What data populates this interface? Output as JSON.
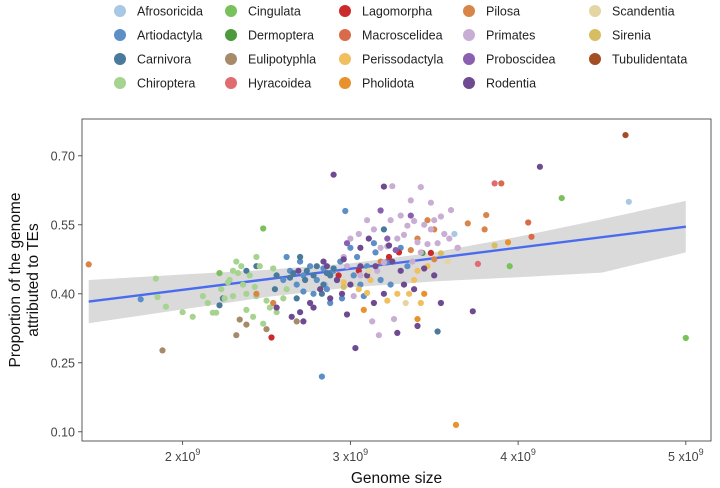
{
  "chart_data": {
    "type": "scatter",
    "title": "",
    "xlabel": "Genome size",
    "ylabel_lines": [
      "Proportion of the genome",
      "attributed to TEs"
    ],
    "xlim": [
      1400000000,
      5150000000
    ],
    "ylim": [
      0.08,
      0.78
    ],
    "x_ticks": [
      {
        "value": 2000000000,
        "mantissa": "2",
        "base": " x10",
        "exp": "9"
      },
      {
        "value": 3000000000,
        "mantissa": "3",
        "base": " x10",
        "exp": "9"
      },
      {
        "value": 4000000000,
        "mantissa": "4",
        "base": " x10",
        "exp": "9"
      },
      {
        "value": 5000000000,
        "mantissa": "5",
        "base": " x10",
        "exp": "9"
      }
    ],
    "y_ticks": [
      {
        "value": 0.1,
        "label": "0.10"
      },
      {
        "value": 0.25,
        "label": "0.25"
      },
      {
        "value": 0.4,
        "label": "0.40"
      },
      {
        "value": 0.55,
        "label": "0.55"
      },
      {
        "value": 0.7,
        "label": "0.70"
      }
    ],
    "grid": false,
    "legend_position": "top",
    "trend_line": {
      "x": [
        1440000000,
        5000000000
      ],
      "y": [
        0.383,
        0.546
      ],
      "color": "#4a6bf0"
    },
    "confidence_band": {
      "x": [
        1440000000,
        2000000000,
        2500000000,
        3000000000,
        3500000000,
        4000000000,
        4500000000,
        5000000000
      ],
      "upper": [
        0.43,
        0.442,
        0.452,
        0.466,
        0.49,
        0.524,
        0.562,
        0.602
      ],
      "lower": [
        0.336,
        0.366,
        0.393,
        0.414,
        0.427,
        0.436,
        0.446,
        0.49
      ],
      "color": "#d6d6d6"
    },
    "series": [
      {
        "name": "Afrosoricida",
        "color": "#a9c8e3",
        "points": [
          [
            4660000000,
            0.6
          ],
          [
            3620000000,
            0.53
          ],
          [
            3250000000,
            0.47
          ],
          [
            2850000000,
            0.42
          ]
        ]
      },
      {
        "name": "Artiodactyla",
        "color": "#5d8fc7",
        "points": [
          [
            2830000000,
            0.22
          ],
          [
            1750000000,
            0.388
          ],
          [
            2970000000,
            0.58
          ],
          [
            3000000000,
            0.5
          ],
          [
            3150000000,
            0.49
          ],
          [
            2720000000,
            0.44
          ],
          [
            2680000000,
            0.42
          ],
          [
            2760000000,
            0.46
          ],
          [
            2800000000,
            0.43
          ],
          [
            2860000000,
            0.41
          ],
          [
            2900000000,
            0.45
          ],
          [
            2940000000,
            0.47
          ],
          [
            3020000000,
            0.44
          ],
          [
            3060000000,
            0.42
          ],
          [
            3100000000,
            0.46
          ],
          [
            3180000000,
            0.43
          ],
          [
            3220000000,
            0.47
          ],
          [
            2640000000,
            0.45
          ],
          [
            2780000000,
            0.4
          ],
          [
            3240000000,
            0.42
          ],
          [
            2600000000,
            0.43
          ],
          [
            2950000000,
            0.39
          ],
          [
            3040000000,
            0.48
          ],
          [
            2840000000,
            0.455
          ],
          [
            2720000000,
            0.405
          ],
          [
            3080000000,
            0.395
          ],
          [
            3340000000,
            0.46
          ],
          [
            2700000000,
            0.47
          ],
          [
            3300000000,
            0.5
          ],
          [
            2880000000,
            0.38
          ],
          [
            2620000000,
            0.48
          ],
          [
            3140000000,
            0.51
          ]
        ]
      },
      {
        "name": "Carnivora",
        "color": "#4a7a9b",
        "points": [
          [
            2800000000,
            0.46
          ],
          [
            2740000000,
            0.45
          ],
          [
            2880000000,
            0.44
          ],
          [
            2440000000,
            0.46
          ],
          [
            2380000000,
            0.45
          ],
          [
            2700000000,
            0.48
          ],
          [
            2780000000,
            0.44
          ],
          [
            2640000000,
            0.435
          ],
          [
            2730000000,
            0.43
          ],
          [
            2560000000,
            0.44
          ],
          [
            2220000000,
            0.375
          ],
          [
            2240000000,
            0.39
          ],
          [
            3200000000,
            0.54
          ],
          [
            2840000000,
            0.42
          ],
          [
            3520000000,
            0.318
          ],
          [
            2860000000,
            0.445
          ],
          [
            2660000000,
            0.445
          ],
          [
            2900000000,
            0.455
          ],
          [
            2920000000,
            0.43
          ],
          [
            2830000000,
            0.4
          ],
          [
            2550000000,
            0.41
          ],
          [
            2680000000,
            0.39
          ]
        ]
      },
      {
        "name": "Chiroptera",
        "color": "#a6d38f",
        "points": [
          [
            1840000000,
            0.433
          ],
          [
            1850000000,
            0.393
          ],
          [
            1900000000,
            0.372
          ],
          [
            2000000000,
            0.36
          ],
          [
            2060000000,
            0.35
          ],
          [
            2150000000,
            0.38
          ],
          [
            2180000000,
            0.359
          ],
          [
            2200000000,
            0.359
          ],
          [
            2230000000,
            0.41
          ],
          [
            2280000000,
            0.43
          ],
          [
            2300000000,
            0.45
          ],
          [
            2320000000,
            0.47
          ],
          [
            2350000000,
            0.46
          ],
          [
            2360000000,
            0.42
          ],
          [
            2380000000,
            0.4
          ],
          [
            2400000000,
            0.44
          ],
          [
            2430000000,
            0.415
          ],
          [
            2440000000,
            0.48
          ],
          [
            2460000000,
            0.46
          ],
          [
            2500000000,
            0.385
          ],
          [
            2520000000,
            0.37
          ],
          [
            2300000000,
            0.395
          ],
          [
            2330000000,
            0.445
          ],
          [
            2250000000,
            0.39
          ],
          [
            2420000000,
            0.35
          ],
          [
            2480000000,
            0.335
          ],
          [
            2560000000,
            0.36
          ],
          [
            2600000000,
            0.39
          ],
          [
            2620000000,
            0.41
          ],
          [
            2120000000,
            0.395
          ],
          [
            2380000000,
            0.365
          ],
          [
            2270000000,
            0.425
          ],
          [
            2440000000,
            0.395
          ],
          [
            2540000000,
            0.455
          ]
        ]
      },
      {
        "name": "Cingulata",
        "color": "#79c15a",
        "points": [
          [
            2220000000,
            0.445
          ],
          [
            2480000000,
            0.542
          ],
          [
            4260000000,
            0.608
          ],
          [
            5000000000,
            0.304
          ],
          [
            3950000000,
            0.46
          ]
        ]
      },
      {
        "name": "Dermoptera",
        "color": "#4b9a3b",
        "points": [
          [
            3430000000,
            0.489
          ]
        ]
      },
      {
        "name": "Eulipotyphla",
        "color": "#a68a6a",
        "points": [
          [
            1880000000,
            0.277
          ],
          [
            2340000000,
            0.344
          ],
          [
            2380000000,
            0.333
          ],
          [
            2500000000,
            0.323
          ],
          [
            2320000000,
            0.31
          ],
          [
            2680000000,
            0.34
          ]
        ]
      },
      {
        "name": "Hyracoidea",
        "color": "#e06b70",
        "points": [
          [
            3860000000,
            0.64
          ],
          [
            3760000000,
            0.465
          ]
        ]
      },
      {
        "name": "Lagomorpha",
        "color": "#cc2a2a",
        "points": [
          [
            2530000000,
            0.305
          ],
          [
            3050000000,
            0.45
          ],
          [
            3230000000,
            0.48
          ],
          [
            3290000000,
            0.49
          ],
          [
            2930000000,
            0.44
          ],
          [
            3480000000,
            0.489
          ]
        ]
      },
      {
        "name": "Macroscelidea",
        "color": "#d96a4a",
        "points": [
          [
            3900000000,
            0.64
          ],
          [
            4060000000,
            0.555
          ],
          [
            4080000000,
            0.524
          ]
        ]
      },
      {
        "name": "Perissodactyla",
        "color": "#f0c060",
        "points": [
          [
            3100000000,
            0.402
          ],
          [
            3460000000,
            0.46
          ],
          [
            3400000000,
            0.45
          ],
          [
            3350000000,
            0.4
          ],
          [
            3120000000,
            0.43
          ],
          [
            3380000000,
            0.43
          ],
          [
            3420000000,
            0.38
          ],
          [
            2960000000,
            0.425
          ],
          [
            3220000000,
            0.385
          ],
          [
            3280000000,
            0.4
          ],
          [
            3050000000,
            0.41
          ]
        ]
      },
      {
        "name": "Pholidota",
        "color": "#e8922c",
        "points": [
          [
            3630000000,
            0.115
          ],
          [
            3940000000,
            0.512
          ],
          [
            3400000000,
            0.345
          ],
          [
            3080000000,
            0.365
          ],
          [
            3440000000,
            0.4
          ]
        ]
      },
      {
        "name": "Pilosa",
        "color": "#d9854a",
        "points": [
          [
            1440000000,
            0.464
          ],
          [
            3810000000,
            0.571
          ],
          [
            3800000000,
            0.54
          ],
          [
            3700000000,
            0.553
          ],
          [
            3460000000,
            0.56
          ],
          [
            3500000000,
            0.54
          ],
          [
            3400000000,
            0.52
          ],
          [
            3360000000,
            0.495
          ],
          [
            3180000000,
            0.47
          ],
          [
            2540000000,
            0.38
          ],
          [
            2440000000,
            0.4
          ],
          [
            3500000000,
            0.475
          ],
          [
            3640000000,
            0.5
          ]
        ]
      },
      {
        "name": "Primates",
        "color": "#c9aed4",
        "points": [
          [
            3130000000,
            0.34
          ],
          [
            3170000000,
            0.31
          ],
          [
            3250000000,
            0.634
          ],
          [
            3420000000,
            0.632
          ],
          [
            3360000000,
            0.603
          ],
          [
            3480000000,
            0.598
          ],
          [
            3540000000,
            0.568
          ],
          [
            3600000000,
            0.582
          ],
          [
            3300000000,
            0.57
          ],
          [
            3440000000,
            0.55
          ],
          [
            3480000000,
            0.54
          ],
          [
            3500000000,
            0.56
          ],
          [
            3560000000,
            0.53
          ],
          [
            3590000000,
            0.52
          ],
          [
            3640000000,
            0.5
          ],
          [
            3280000000,
            0.52
          ],
          [
            3320000000,
            0.528
          ],
          [
            3340000000,
            0.548
          ],
          [
            3380000000,
            0.558
          ],
          [
            3400000000,
            0.512
          ],
          [
            3460000000,
            0.508
          ],
          [
            3180000000,
            0.5
          ],
          [
            3220000000,
            0.503
          ],
          [
            3140000000,
            0.54
          ],
          [
            3100000000,
            0.56
          ],
          [
            3050000000,
            0.53
          ],
          [
            3000000000,
            0.52
          ],
          [
            3200000000,
            0.468
          ],
          [
            3060000000,
            0.44
          ],
          [
            2960000000,
            0.48
          ],
          [
            2980000000,
            0.46
          ],
          [
            3020000000,
            0.395
          ],
          [
            3260000000,
            0.345
          ],
          [
            3160000000,
            0.45
          ],
          [
            3370000000,
            0.47
          ],
          [
            3420000000,
            0.49
          ],
          [
            3520000000,
            0.51
          ],
          [
            3240000000,
            0.56
          ]
        ]
      },
      {
        "name": "Proboscidea",
        "color": "#8a5fb0",
        "points": [
          [
            3180000000,
            0.581
          ],
          [
            3220000000,
            0.52
          ],
          [
            3360000000,
            0.57
          ],
          [
            2980000000,
            0.51
          ],
          [
            3270000000,
            0.495
          ]
        ]
      },
      {
        "name": "Rodentia",
        "color": "#6e4a91",
        "points": [
          [
            2900000000,
            0.659
          ],
          [
            3200000000,
            0.633
          ],
          [
            4130000000,
            0.676
          ],
          [
            3030000000,
            0.282
          ],
          [
            3280000000,
            0.315
          ],
          [
            3400000000,
            0.33
          ],
          [
            3730000000,
            0.362
          ],
          [
            3540000000,
            0.38
          ],
          [
            3380000000,
            0.41
          ],
          [
            3300000000,
            0.45
          ],
          [
            3250000000,
            0.47
          ],
          [
            3150000000,
            0.46
          ],
          [
            3100000000,
            0.44
          ],
          [
            3000000000,
            0.42
          ],
          [
            2950000000,
            0.4
          ],
          [
            2880000000,
            0.39
          ],
          [
            2820000000,
            0.41
          ],
          [
            2760000000,
            0.38
          ],
          [
            2700000000,
            0.36
          ],
          [
            2650000000,
            0.35
          ],
          [
            2560000000,
            0.37
          ],
          [
            3060000000,
            0.5
          ],
          [
            3110000000,
            0.52
          ],
          [
            3230000000,
            0.505
          ],
          [
            2960000000,
            0.475
          ],
          [
            2860000000,
            0.46
          ],
          [
            2780000000,
            0.37
          ],
          [
            2720000000,
            0.34
          ],
          [
            3200000000,
            0.4
          ],
          [
            3320000000,
            0.42
          ],
          [
            3440000000,
            0.455
          ],
          [
            3500000000,
            0.44
          ],
          [
            2980000000,
            0.355
          ],
          [
            2920000000,
            0.43
          ],
          [
            2840000000,
            0.47
          ],
          [
            2690000000,
            0.45
          ],
          [
            3140000000,
            0.38
          ],
          [
            3060000000,
            0.46
          ]
        ]
      },
      {
        "name": "Scandentia",
        "color": "#e3d6a2",
        "points": [
          [
            3110000000,
            0.45
          ],
          [
            3330000000,
            0.38
          ],
          [
            3580000000,
            0.47
          ]
        ]
      },
      {
        "name": "Sirenia",
        "color": "#d8bd62",
        "points": [
          [
            3540000000,
            0.488
          ],
          [
            3860000000,
            0.505
          ],
          [
            2960000000,
            0.415
          ]
        ]
      },
      {
        "name": "Tubulidentata",
        "color": "#a34e22",
        "points": [
          [
            4640000000,
            0.745
          ]
        ]
      }
    ]
  }
}
